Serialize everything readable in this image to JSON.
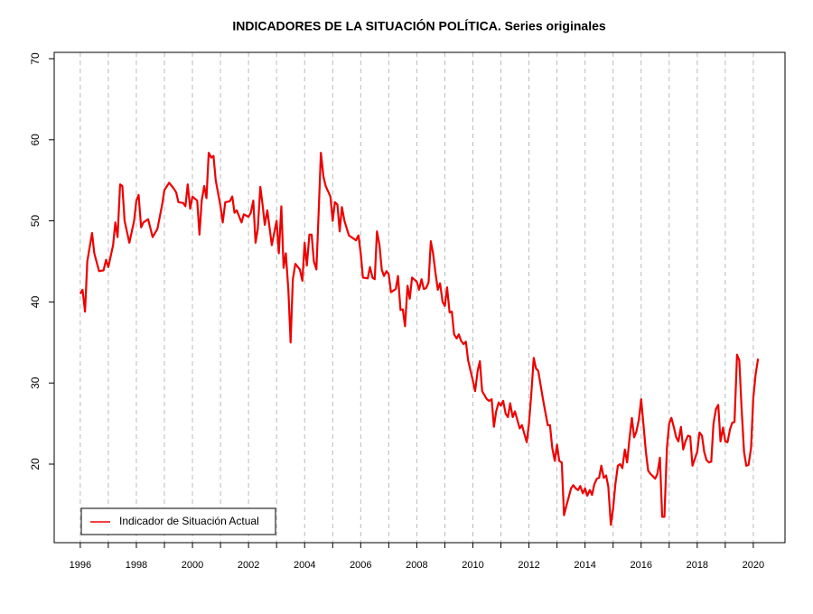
{
  "chart_data": {
    "type": "line",
    "title": "INDICADORES DE LA SITUACIÓN POLÍTICA. Series originales",
    "x": [
      1996.0,
      1996.08,
      1996.17,
      1996.25,
      1996.42,
      1996.5,
      1996.67,
      1996.83,
      1996.92,
      1997.0,
      1997.17,
      1997.25,
      1997.33,
      1997.42,
      1997.5,
      1997.58,
      1997.75,
      1997.92,
      1998.0,
      1998.08,
      1998.17,
      1998.25,
      1998.42,
      1998.58,
      1998.75,
      1998.92,
      1999.0,
      1999.17,
      1999.33,
      1999.42,
      1999.5,
      1999.67,
      1999.75,
      1999.83,
      1999.92,
      2000.0,
      2000.17,
      2000.25,
      2000.33,
      2000.42,
      2000.5,
      2000.58,
      2000.67,
      2000.75,
      2000.83,
      2001.0,
      2001.08,
      2001.17,
      2001.33,
      2001.42,
      2001.5,
      2001.58,
      2001.75,
      2001.83,
      2002.0,
      2002.08,
      2002.17,
      2002.25,
      2002.33,
      2002.42,
      2002.5,
      2002.58,
      2002.67,
      2002.83,
      2003.0,
      2003.08,
      2003.17,
      2003.25,
      2003.33,
      2003.42,
      2003.5,
      2003.58,
      2003.67,
      2003.83,
      2003.92,
      2004.0,
      2004.08,
      2004.17,
      2004.25,
      2004.33,
      2004.42,
      2004.5,
      2004.58,
      2004.67,
      2004.75,
      2004.92,
      2005.0,
      2005.08,
      2005.17,
      2005.25,
      2005.33,
      2005.42,
      2005.58,
      2005.75,
      2005.83,
      2005.92,
      2006.0,
      2006.08,
      2006.25,
      2006.33,
      2006.42,
      2006.5,
      2006.58,
      2006.67,
      2006.75,
      2006.83,
      2006.92,
      2007.0,
      2007.08,
      2007.25,
      2007.33,
      2007.42,
      2007.5,
      2007.58,
      2007.67,
      2007.75,
      2007.83,
      2008.0,
      2008.08,
      2008.17,
      2008.25,
      2008.33,
      2008.42,
      2008.5,
      2008.58,
      2008.67,
      2008.75,
      2008.83,
      2008.92,
      2009.0,
      2009.08,
      2009.17,
      2009.25,
      2009.33,
      2009.42,
      2009.5,
      2009.58,
      2009.67,
      2009.75,
      2009.83,
      2010.0,
      2010.08,
      2010.17,
      2010.25,
      2010.33,
      2010.5,
      2010.58,
      2010.67,
      2010.75,
      2010.83,
      2010.92,
      2011.0,
      2011.08,
      2011.17,
      2011.25,
      2011.33,
      2011.42,
      2011.5,
      2011.67,
      2011.75,
      2011.83,
      2011.92,
      2012.0,
      2012.08,
      2012.17,
      2012.25,
      2012.33,
      2012.5,
      2012.67,
      2012.75,
      2012.83,
      2012.92,
      2013.0,
      2013.08,
      2013.17,
      2013.25,
      2013.33,
      2013.5,
      2013.58,
      2013.67,
      2013.75,
      2013.83,
      2013.92,
      2014.0,
      2014.08,
      2014.17,
      2014.25,
      2014.33,
      2014.42,
      2014.5,
      2014.58,
      2014.67,
      2014.75,
      2014.83,
      2014.92,
      2015.0,
      2015.08,
      2015.17,
      2015.25,
      2015.33,
      2015.42,
      2015.5,
      2015.58,
      2015.67,
      2015.75,
      2015.83,
      2015.92,
      2016.0,
      2016.08,
      2016.17,
      2016.25,
      2016.33,
      2016.42,
      2016.5,
      2016.58,
      2016.67,
      2016.75,
      2016.83,
      2016.92,
      2017.0,
      2017.08,
      2017.17,
      2017.25,
      2017.33,
      2017.42,
      2017.5,
      2017.58,
      2017.67,
      2017.75,
      2017.83,
      2018.0,
      2018.08,
      2018.17,
      2018.25,
      2018.33,
      2018.42,
      2018.5,
      2018.58,
      2018.67,
      2018.75,
      2018.83,
      2018.92,
      2019.0,
      2019.08,
      2019.17,
      2019.25,
      2019.33,
      2019.42,
      2019.5,
      2019.58,
      2019.67,
      2019.75,
      2019.83,
      2019.92,
      2020.0,
      2020.08,
      2020.17
    ],
    "series": [
      {
        "name": "Indicador de Situación Actual",
        "color": "#ee0000",
        "values": [
          41,
          41.5,
          38.8,
          45,
          48.5,
          46,
          43.8,
          43.9,
          45.2,
          44.3,
          47,
          49.8,
          48,
          54.5,
          54.3,
          50,
          47.3,
          50,
          52.5,
          53.2,
          49.2,
          49.8,
          50.2,
          48,
          49,
          52,
          53.8,
          54.7,
          54,
          53.5,
          52.3,
          52.2,
          51.8,
          54.5,
          51.5,
          53,
          52.5,
          48.3,
          52.5,
          54.3,
          52.8,
          58.4,
          57.8,
          58,
          55,
          51.8,
          49.8,
          52.3,
          52.4,
          53,
          51,
          51.3,
          49.8,
          50.8,
          50.5,
          51,
          52.5,
          47.3,
          49,
          54.2,
          52,
          49.5,
          51.3,
          47,
          50,
          46,
          51.8,
          44.2,
          46,
          41.5,
          35,
          42.8,
          44.7,
          44,
          42.6,
          47.3,
          44.5,
          48.3,
          48.3,
          45,
          44,
          51,
          58.4,
          55.5,
          54.3,
          53,
          50,
          52.3,
          52,
          48.7,
          51.7,
          50,
          48.2,
          47.8,
          47.6,
          48.2,
          46,
          43,
          42.9,
          44.3,
          43,
          42.8,
          48.7,
          47,
          44,
          43.2,
          43.8,
          43.4,
          41.2,
          41.6,
          43.2,
          39,
          39.1,
          37,
          42,
          40.4,
          43,
          42.5,
          41.5,
          42.8,
          41.6,
          41.7,
          42.4,
          47.5,
          46,
          43.5,
          41.5,
          42.3,
          40,
          39.5,
          41.8,
          38.7,
          38.8,
          36,
          35.5,
          36,
          35.2,
          34.8,
          35.1,
          32.8,
          30.3,
          29,
          31.5,
          32.7,
          29,
          28,
          27.8,
          28,
          24.6,
          26.5,
          27.6,
          27.2,
          27.8,
          26.2,
          25.8,
          27.5,
          25.8,
          26.5,
          24.4,
          24.8,
          23.8,
          22.7,
          25,
          28.5,
          33.1,
          31.8,
          31.5,
          28,
          24.8,
          24.8,
          22,
          20.4,
          22.4,
          20.4,
          20.2,
          13.7,
          14.8,
          17,
          17.4,
          17,
          16.8,
          17.3,
          16.4,
          17,
          16.1,
          16.8,
          16.2,
          17.5,
          18.2,
          18.3,
          19.8,
          18.3,
          18.6,
          17.2,
          12.5,
          14.5,
          17.5,
          19.8,
          20,
          19.5,
          21.8,
          20.2,
          23,
          25.7,
          23.3,
          24,
          25.5,
          28,
          25,
          21.5,
          19.2,
          18.8,
          18.5,
          18.2,
          18.8,
          20.8,
          13.5,
          13.5,
          22,
          25,
          25.7,
          24.5,
          23.3,
          22.8,
          24.6,
          21.8,
          22.8,
          23.5,
          23.4,
          19.8,
          21.5,
          23.9,
          23.5,
          21.5,
          20.5,
          20.2,
          20.3,
          25,
          26.8,
          27.3,
          22.8,
          24.5,
          22.8,
          22.7,
          24.3,
          25.1,
          25.2,
          33.5,
          32.8,
          27,
          21.5,
          19.8,
          19.9,
          22,
          28.2,
          31,
          33
        ]
      }
    ],
    "xlim": [
      1995.07,
      2021.13
    ],
    "xticks": [
      1996,
      1998,
      2000,
      2002,
      2004,
      2006,
      2008,
      2010,
      2012,
      2014,
      2016,
      2018,
      2020
    ],
    "xticks_minor": [
      1997,
      1999,
      2001,
      2003,
      2005,
      2007,
      2009,
      2011,
      2013,
      2015,
      2017,
      2019
    ],
    "ylim": [
      10.31,
      70.78
    ],
    "yticks": [
      20,
      30,
      40,
      50,
      60,
      70
    ],
    "grid": "x",
    "legend": "bottom-left"
  }
}
